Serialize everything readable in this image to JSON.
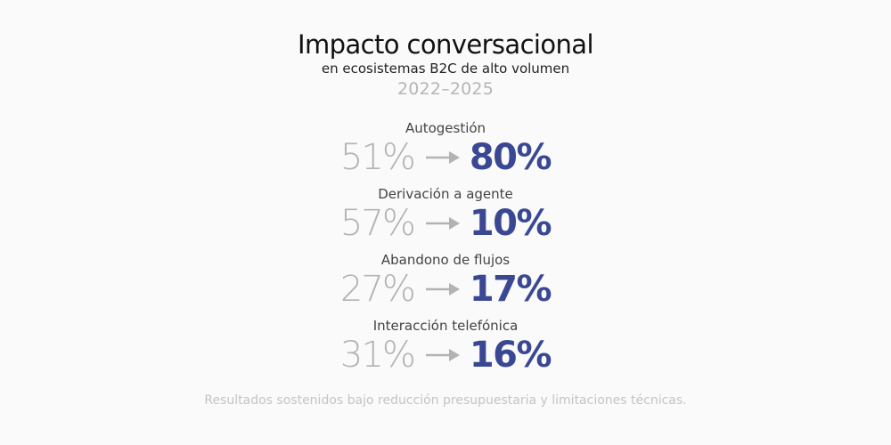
{
  "header": {
    "title": "Impacto conversacional",
    "subtitle": "en ecosistemas B2C de alto volumen",
    "period": "2022–2025"
  },
  "metrics": [
    {
      "label": "Autogestión",
      "before": "51%",
      "after": "80%"
    },
    {
      "label": "Derivación a agente",
      "before": "57%",
      "after": "10%"
    },
    {
      "label": "Abandono de flujos",
      "before": "27%",
      "after": "17%"
    },
    {
      "label": "Interacción telefónica",
      "before": "31%",
      "after": "16%"
    }
  ],
  "footer": {
    "note": "Resultados sostenidos bajo reducción presupuestaria y limitaciones técnicas."
  },
  "colors": {
    "background": "#fafafa",
    "before_value": "#b3b3b3",
    "after_value": "#3a4894",
    "arrow": "#b3b3b3"
  },
  "icons": {
    "arrow": "arrow-right-icon"
  }
}
